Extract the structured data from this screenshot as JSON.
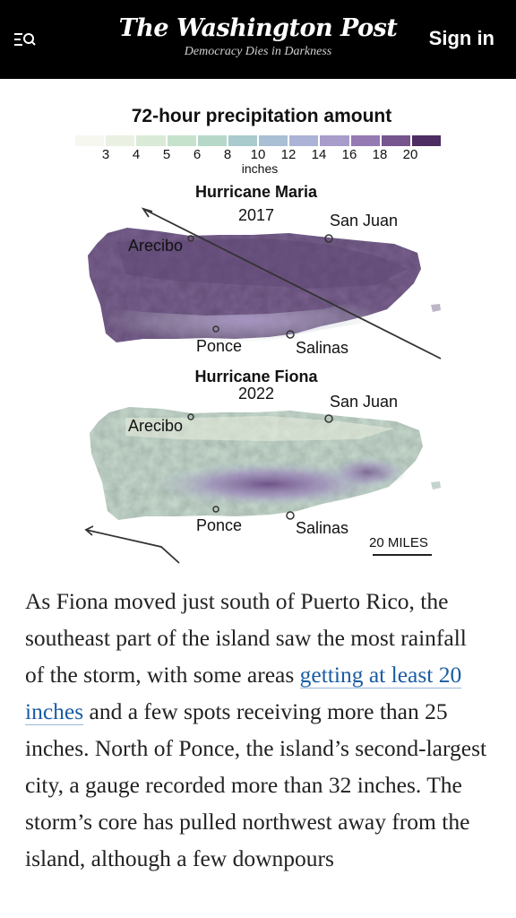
{
  "header": {
    "logo": "The Washington Post",
    "tagline": "Democracy Dies in Darkness",
    "sign_in": "Sign in",
    "menu_icon": "menu-search-icon"
  },
  "legend": {
    "title": "72-hour precipitation amount",
    "unit": "inches",
    "ticks": [
      "3",
      "4",
      "5",
      "6",
      "8",
      "10",
      "12",
      "14",
      "16",
      "18",
      "20"
    ],
    "colors": [
      "#f6f8ef",
      "#eaf1e3",
      "#d9ebd6",
      "#c6e2cd",
      "#b5d8c9",
      "#a9cbcd",
      "#a9bfd3",
      "#abb3d6",
      "#a89ccb",
      "#957ab3",
      "#77558f",
      "#4d2d63"
    ]
  },
  "maps": [
    {
      "title": "Hurricane Maria",
      "year": "2017",
      "cities": {
        "san_juan": "San Juan",
        "arecibo": "Arecibo",
        "ponce": "Ponce",
        "salinas": "Salinas"
      }
    },
    {
      "title": "Hurricane Fiona",
      "year": "2022",
      "cities": {
        "san_juan": "San Juan",
        "arecibo": "Arecibo",
        "ponce": "Ponce",
        "salinas": "Salinas"
      }
    }
  ],
  "scale": "20 MILES",
  "article": {
    "before_link": "As Fiona moved just south of Puerto Rico, the southeast part of the island saw the most rainfall of the storm, with some areas ",
    "link": "getting at least 20 inches",
    "after_link": " and a few spots receiving more than 25 inches. North of Ponce, the island’s second-largest city, a gauge recorded more than 32 inches. The storm’s core has pulled northwest away from the island, although a few downpours"
  }
}
